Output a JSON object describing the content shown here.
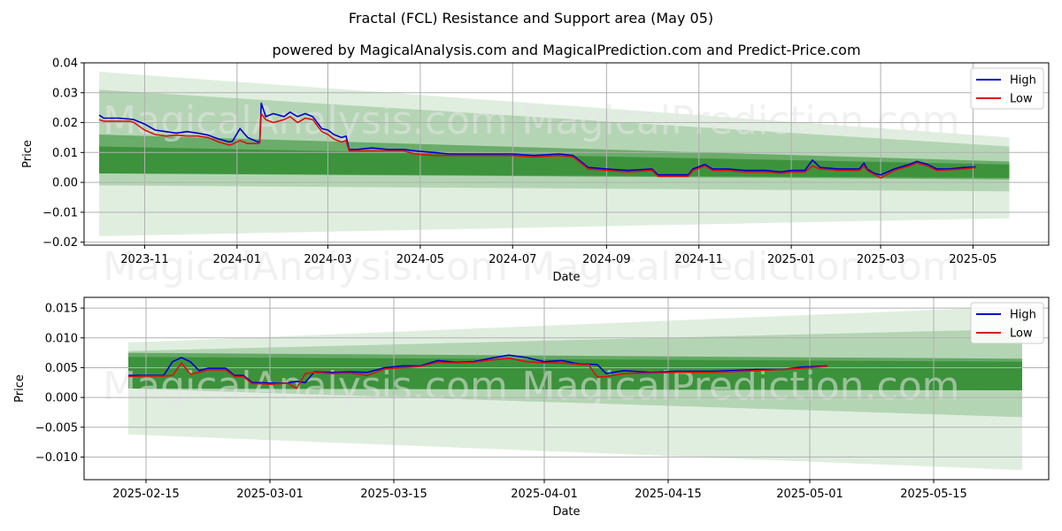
{
  "title": "Fractal (FCL) Resistance and Support area (May 05)",
  "subtitle": "powered by MagicalAnalysis.com and MagicalPrediction.com and Predict-Price.com",
  "watermarks": [
    "MagicalAnalysis.com",
    "MagicalPrediction.com"
  ],
  "colors": {
    "high": "#0000cc",
    "low": "#dd1111",
    "band_dark": "#2e8b2e",
    "band_light": "#a9d8a9",
    "grid": "#b0b0b0"
  },
  "chart_data": [
    {
      "type": "line",
      "xlabel": "Date",
      "ylabel": "Price",
      "ylim": [
        -0.021,
        0.04
      ],
      "xlim": [
        "2023-09-22",
        "2025-06-20"
      ],
      "yticks": [
        -0.02,
        -0.01,
        0.0,
        0.01,
        0.02,
        0.03,
        0.04
      ],
      "ytick_labels": [
        "−0.02",
        "−0.01",
        "0.00",
        "0.01",
        "0.02",
        "0.03",
        "0.04"
      ],
      "xticks": [
        "2023-11-01",
        "2024-01-01",
        "2024-03-01",
        "2024-05-01",
        "2024-07-01",
        "2024-09-01",
        "2024-11-01",
        "2025-01-01",
        "2025-03-01",
        "2025-05-01"
      ],
      "xtick_labels": [
        "2023-11",
        "2024-01",
        "2024-03",
        "2024-05",
        "2024-07",
        "2024-09",
        "2024-11",
        "2025-01",
        "2025-03",
        "2025-05"
      ],
      "legend": {
        "position": "top-right",
        "entries": [
          "High",
          "Low"
        ]
      },
      "grid": true,
      "bands": {
        "x_start": "2023-10-02",
        "x_end": "2025-05-25",
        "layers": [
          {
            "start": [
              -0.018,
              0.037
            ],
            "end": [
              -0.012,
              0.015
            ],
            "opacity": 0.15
          },
          {
            "start": [
              -0.001,
              0.031
            ],
            "end": [
              -0.003,
              0.012
            ],
            "opacity": 0.25
          },
          {
            "start": [
              0.003,
              0.016
            ],
            "end": [
              0.001,
              0.007
            ],
            "opacity": 0.55
          },
          {
            "start": [
              0.003,
              0.012
            ],
            "end": [
              0.0015,
              0.006
            ],
            "opacity": 0.75
          }
        ]
      },
      "series": [
        {
          "name": "High",
          "x": [
            "2023-10-02",
            "2023-10-05",
            "2023-10-15",
            "2023-10-22",
            "2023-10-25",
            "2023-11-01",
            "2023-11-08",
            "2023-11-15",
            "2023-11-22",
            "2023-11-29",
            "2023-12-06",
            "2023-12-13",
            "2023-12-20",
            "2023-12-27",
            "2023-12-29",
            "2024-01-03",
            "2024-01-08",
            "2024-01-15",
            "2024-01-16",
            "2024-01-17",
            "2024-01-20",
            "2024-01-25",
            "2024-02-01",
            "2024-02-05",
            "2024-02-10",
            "2024-02-15",
            "2024-02-20",
            "2024-02-26",
            "2024-03-01",
            "2024-03-05",
            "2024-03-10",
            "2024-03-13",
            "2024-03-15",
            "2024-03-20",
            "2024-03-30",
            "2024-04-10",
            "2024-04-20",
            "2024-04-28",
            "2024-05-10",
            "2024-05-20",
            "2024-06-01",
            "2024-06-15",
            "2024-07-01",
            "2024-07-15",
            "2024-08-01",
            "2024-08-10",
            "2024-08-20",
            "2024-09-01",
            "2024-09-15",
            "2024-10-01",
            "2024-10-05",
            "2024-10-15",
            "2024-10-25",
            "2024-10-28",
            "2024-11-05",
            "2024-11-10",
            "2024-11-20",
            "2024-12-01",
            "2024-12-15",
            "2024-12-25",
            "2025-01-01",
            "2025-01-10",
            "2025-01-15",
            "2025-01-20",
            "2025-02-01",
            "2025-02-15",
            "2025-02-18",
            "2025-02-20",
            "2025-02-25",
            "2025-03-01",
            "2025-03-10",
            "2025-03-20",
            "2025-03-25",
            "2025-04-01",
            "2025-04-07",
            "2025-04-15",
            "2025-04-25",
            "2025-05-03"
          ],
          "values": [
            0.0225,
            0.0215,
            0.0215,
            0.0212,
            0.021,
            0.0195,
            0.0175,
            0.017,
            0.0165,
            0.017,
            0.0165,
            0.0158,
            0.0145,
            0.0135,
            0.0138,
            0.018,
            0.015,
            0.0135,
            0.0138,
            0.0265,
            0.022,
            0.023,
            0.022,
            0.0235,
            0.022,
            0.023,
            0.022,
            0.018,
            0.0175,
            0.016,
            0.015,
            0.0155,
            0.011,
            0.011,
            0.0115,
            0.011,
            0.011,
            0.0105,
            0.01,
            0.0095,
            0.0095,
            0.0095,
            0.0095,
            0.009,
            0.0095,
            0.009,
            0.005,
            0.0045,
            0.004,
            0.0045,
            0.0025,
            0.0025,
            0.0025,
            0.0045,
            0.006,
            0.0045,
            0.0045,
            0.004,
            0.004,
            0.0035,
            0.004,
            0.004,
            0.0075,
            0.005,
            0.0045,
            0.0045,
            0.0065,
            0.0045,
            0.003,
            0.0025,
            0.0045,
            0.006,
            0.007,
            0.006,
            0.0045,
            0.0045,
            0.005,
            0.0052
          ]
        },
        {
          "name": "Low",
          "x": [
            "2023-10-02",
            "2023-10-05",
            "2023-10-15",
            "2023-10-22",
            "2023-10-25",
            "2023-11-01",
            "2023-11-08",
            "2023-11-15",
            "2023-11-22",
            "2023-11-29",
            "2023-12-06",
            "2023-12-13",
            "2023-12-20",
            "2023-12-27",
            "2023-12-29",
            "2024-01-03",
            "2024-01-08",
            "2024-01-15",
            "2024-01-16",
            "2024-01-17",
            "2024-01-20",
            "2024-01-25",
            "2024-02-01",
            "2024-02-05",
            "2024-02-10",
            "2024-02-15",
            "2024-02-20",
            "2024-02-26",
            "2024-03-01",
            "2024-03-05",
            "2024-03-10",
            "2024-03-13",
            "2024-03-15",
            "2024-03-20",
            "2024-03-30",
            "2024-04-10",
            "2024-04-20",
            "2024-04-28",
            "2024-05-10",
            "2024-05-20",
            "2024-06-01",
            "2024-06-15",
            "2024-07-01",
            "2024-07-15",
            "2024-08-01",
            "2024-08-10",
            "2024-08-20",
            "2024-09-01",
            "2024-09-15",
            "2024-10-01",
            "2024-10-05",
            "2024-10-15",
            "2024-10-25",
            "2024-10-28",
            "2024-11-05",
            "2024-11-10",
            "2024-11-20",
            "2024-12-01",
            "2024-12-15",
            "2024-12-25",
            "2025-01-01",
            "2025-01-10",
            "2025-01-15",
            "2025-01-20",
            "2025-02-01",
            "2025-02-15",
            "2025-02-18",
            "2025-02-20",
            "2025-02-25",
            "2025-03-01",
            "2025-03-10",
            "2025-03-20",
            "2025-03-25",
            "2025-04-01",
            "2025-04-07",
            "2025-04-15",
            "2025-04-25",
            "2025-05-03"
          ],
          "values": [
            0.021,
            0.0205,
            0.0205,
            0.0205,
            0.02,
            0.0175,
            0.016,
            0.0155,
            0.0158,
            0.0155,
            0.0155,
            0.015,
            0.0135,
            0.0125,
            0.0128,
            0.014,
            0.013,
            0.013,
            0.0132,
            0.023,
            0.021,
            0.02,
            0.021,
            0.022,
            0.02,
            0.0215,
            0.021,
            0.017,
            0.016,
            0.0145,
            0.0135,
            0.014,
            0.0105,
            0.0105,
            0.0105,
            0.0105,
            0.0105,
            0.0095,
            0.009,
            0.009,
            0.009,
            0.009,
            0.009,
            0.0085,
            0.009,
            0.0085,
            0.0045,
            0.004,
            0.0035,
            0.004,
            0.002,
            0.002,
            0.002,
            0.004,
            0.0055,
            0.004,
            0.004,
            0.0035,
            0.0035,
            0.003,
            0.0035,
            0.0035,
            0.0055,
            0.0045,
            0.004,
            0.004,
            0.0055,
            0.004,
            0.0025,
            0.0015,
            0.004,
            0.0055,
            0.0065,
            0.0055,
            0.004,
            0.0042,
            0.0045,
            0.005
          ]
        }
      ]
    },
    {
      "type": "line",
      "xlabel": "Date",
      "ylabel": "Price",
      "ylim": [
        -0.0138,
        0.0168
      ],
      "xlim": [
        "2025-02-08",
        "2025-05-28"
      ],
      "yticks": [
        -0.01,
        -0.005,
        0.0,
        0.005,
        0.01,
        0.015
      ],
      "ytick_labels": [
        "−0.010",
        "−0.005",
        "0.000",
        "0.005",
        "0.010",
        "0.015"
      ],
      "xticks": [
        "2025-02-15",
        "2025-03-01",
        "2025-03-15",
        "2025-04-01",
        "2025-04-15",
        "2025-05-01",
        "2025-05-15"
      ],
      "xtick_labels": [
        "2025-02-15",
        "2025-03-01",
        "2025-03-15",
        "2025-04-01",
        "2025-04-15",
        "2025-05-01",
        "2025-05-15"
      ],
      "legend": {
        "position": "top-right",
        "entries": [
          "High",
          "Low"
        ]
      },
      "grid": true,
      "bands": {
        "x_start": "2025-02-13",
        "x_end": "2025-05-25",
        "layers": [
          {
            "start": [
              -0.0062,
              0.0092
            ],
            "end": [
              -0.0122,
              0.0153
            ],
            "opacity": 0.15
          },
          {
            "start": [
              0.0015,
              0.0078
            ],
            "end": [
              -0.0033,
              0.0115
            ],
            "opacity": 0.25
          },
          {
            "start": [
              0.0015,
              0.0075
            ],
            "end": [
              0.0012,
              0.0065
            ],
            "opacity": 0.6
          },
          {
            "start": [
              0.0015,
              0.0068
            ],
            "end": [
              0.0012,
              0.006
            ],
            "opacity": 0.75
          }
        ]
      },
      "series": [
        {
          "name": "High",
          "x": [
            "2025-02-13",
            "2025-02-15",
            "2025-02-17",
            "2025-02-18",
            "2025-02-19",
            "2025-02-20",
            "2025-02-21",
            "2025-02-22",
            "2025-02-24",
            "2025-02-25",
            "2025-02-26",
            "2025-02-27",
            "2025-02-28",
            "2025-03-01",
            "2025-03-03",
            "2025-03-04",
            "2025-03-05",
            "2025-03-06",
            "2025-03-08",
            "2025-03-10",
            "2025-03-12",
            "2025-03-14",
            "2025-03-16",
            "2025-03-18",
            "2025-03-20",
            "2025-03-22",
            "2025-03-24",
            "2025-03-26",
            "2025-03-28",
            "2025-03-30",
            "2025-04-01",
            "2025-04-03",
            "2025-04-05",
            "2025-04-06",
            "2025-04-07",
            "2025-04-08",
            "2025-04-10",
            "2025-04-13",
            "2025-04-16",
            "2025-04-20",
            "2025-04-25",
            "2025-04-28",
            "2025-04-30",
            "2025-05-03"
          ],
          "values": [
            0.0037,
            0.0037,
            0.0037,
            0.006,
            0.0067,
            0.006,
            0.0045,
            0.0049,
            0.0049,
            0.0037,
            0.0037,
            0.0025,
            0.0025,
            0.0024,
            0.0024,
            0.0027,
            0.0025,
            0.0043,
            0.0042,
            0.0043,
            0.0042,
            0.005,
            0.0053,
            0.0053,
            0.0062,
            0.0059,
            0.006,
            0.0066,
            0.0071,
            0.0067,
            0.006,
            0.0062,
            0.0056,
            0.0056,
            0.0055,
            0.004,
            0.0045,
            0.0042,
            0.0044,
            0.0044,
            0.0047,
            0.0047,
            0.0051,
            0.0053
          ]
        },
        {
          "name": "Low",
          "x": [
            "2025-02-13",
            "2025-02-15",
            "2025-02-17",
            "2025-02-18",
            "2025-02-19",
            "2025-02-20",
            "2025-02-21",
            "2025-02-22",
            "2025-02-24",
            "2025-02-25",
            "2025-02-26",
            "2025-02-27",
            "2025-02-28",
            "2025-03-01",
            "2025-03-03",
            "2025-03-04",
            "2025-03-05",
            "2025-03-06",
            "2025-03-08",
            "2025-03-10",
            "2025-03-12",
            "2025-03-14",
            "2025-03-16",
            "2025-03-18",
            "2025-03-20",
            "2025-03-22",
            "2025-03-24",
            "2025-03-26",
            "2025-03-28",
            "2025-03-30",
            "2025-04-01",
            "2025-04-03",
            "2025-04-05",
            "2025-04-06",
            "2025-04-07",
            "2025-04-08",
            "2025-04-10",
            "2025-04-13",
            "2025-04-16",
            "2025-04-20",
            "2025-04-25",
            "2025-04-28",
            "2025-04-30",
            "2025-05-03"
          ],
          "values": [
            0.0035,
            0.0036,
            0.0036,
            0.0037,
            0.0058,
            0.0039,
            0.0042,
            0.0046,
            0.0046,
            0.0035,
            0.0035,
            0.0023,
            0.0023,
            0.0022,
            0.0024,
            0.0015,
            0.004,
            0.0042,
            0.004,
            0.0041,
            0.0037,
            0.0048,
            0.005,
            0.0052,
            0.0059,
            0.0058,
            0.0059,
            0.0063,
            0.0066,
            0.006,
            0.0058,
            0.0058,
            0.0055,
            0.0055,
            0.0034,
            0.0035,
            0.004,
            0.0041,
            0.0042,
            0.0042,
            0.0045,
            0.0047,
            0.0049,
            0.0052
          ]
        }
      ]
    }
  ]
}
